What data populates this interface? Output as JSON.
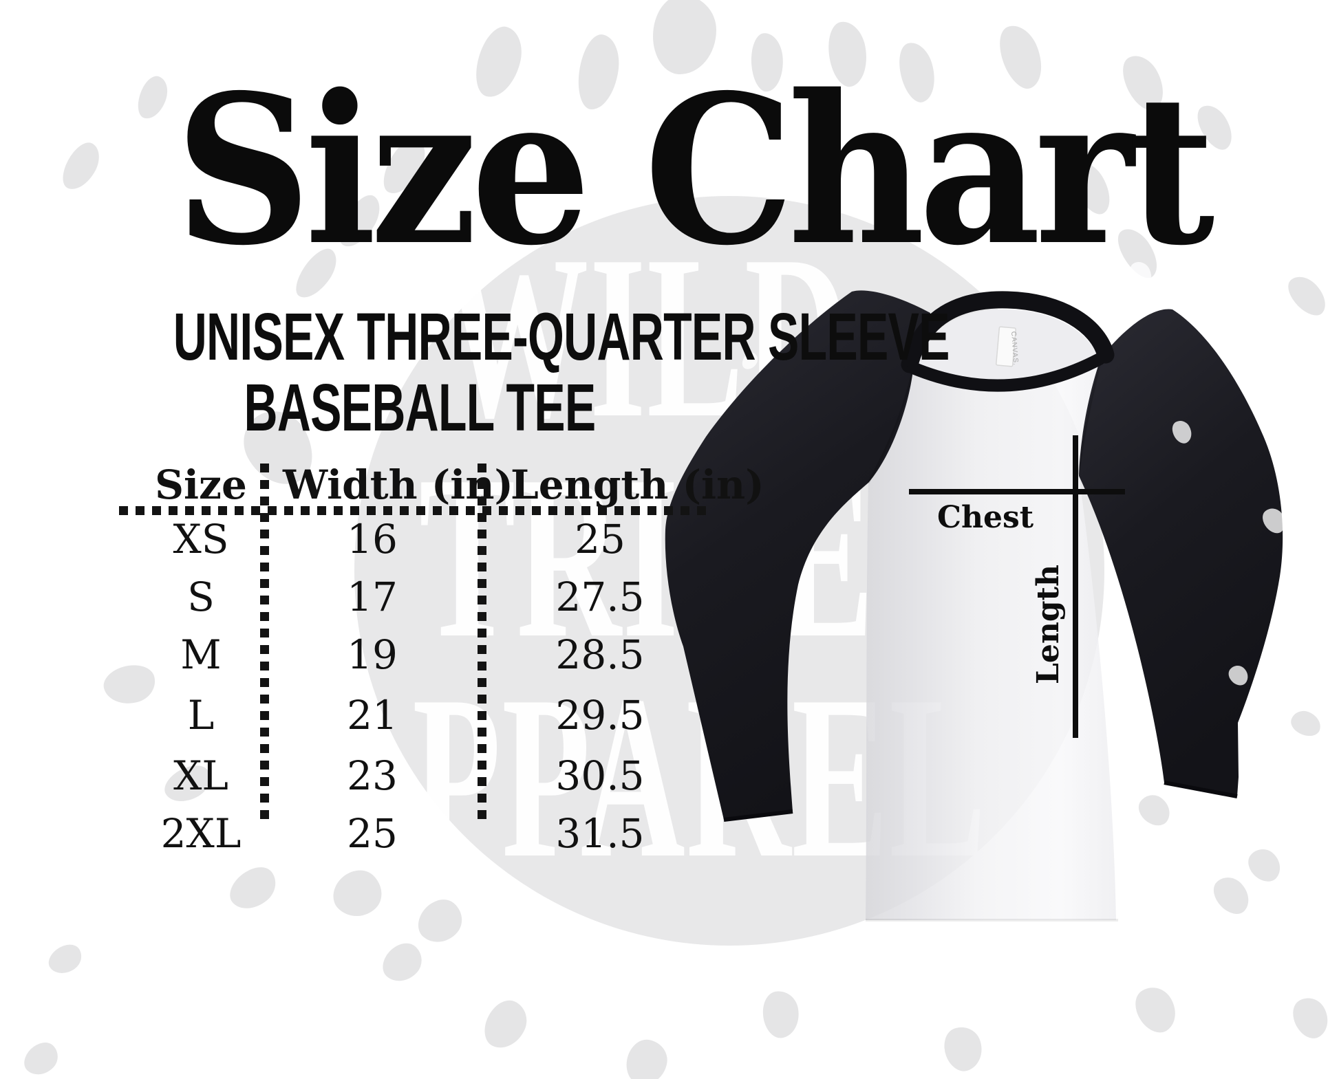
{
  "title": "Size Chart",
  "subtitle": {
    "line1": "UNISEX THREE-QUARTER SLEEVE",
    "line2": "BASEBALL TEE"
  },
  "watermark": {
    "line1": "WILD",
    "line2": "TRIBE",
    "line3": "APPAREL"
  },
  "table": {
    "headers": {
      "size": "Size",
      "width": "Width (in)",
      "length": "Length (in)"
    },
    "rows": [
      {
        "size": "XS",
        "width": "16",
        "length": "25"
      },
      {
        "size": "S",
        "width": "17",
        "length": "27.5"
      },
      {
        "size": "M",
        "width": "19",
        "length": "28.5"
      },
      {
        "size": "L",
        "width": "21",
        "length": "29.5"
      },
      {
        "size": "XL",
        "width": "23",
        "length": "30.5"
      },
      {
        "size": "2XL",
        "width": "25",
        "length": "31.5"
      }
    ]
  },
  "shirt": {
    "chest_label": "Chest",
    "length_label": "Length",
    "tag": "CANVAS."
  },
  "colors": {
    "ink": "#111111",
    "circle_gray": "#e8e8e9",
    "sleeve_black": "#1a1a20",
    "body_white": "#f6f6f8"
  },
  "chart_data": {
    "type": "table",
    "title": "Size Chart",
    "subtitle": "Unisex Three-Quarter Sleeve Baseball Tee",
    "columns": [
      "Size",
      "Width (in)",
      "Length (in)"
    ],
    "rows": [
      [
        "XS",
        16,
        25
      ],
      [
        "S",
        17,
        27.5
      ],
      [
        "M",
        19,
        28.5
      ],
      [
        "L",
        21,
        29.5
      ],
      [
        "XL",
        23,
        30.5
      ],
      [
        "2XL",
        25,
        31.5
      ]
    ]
  }
}
